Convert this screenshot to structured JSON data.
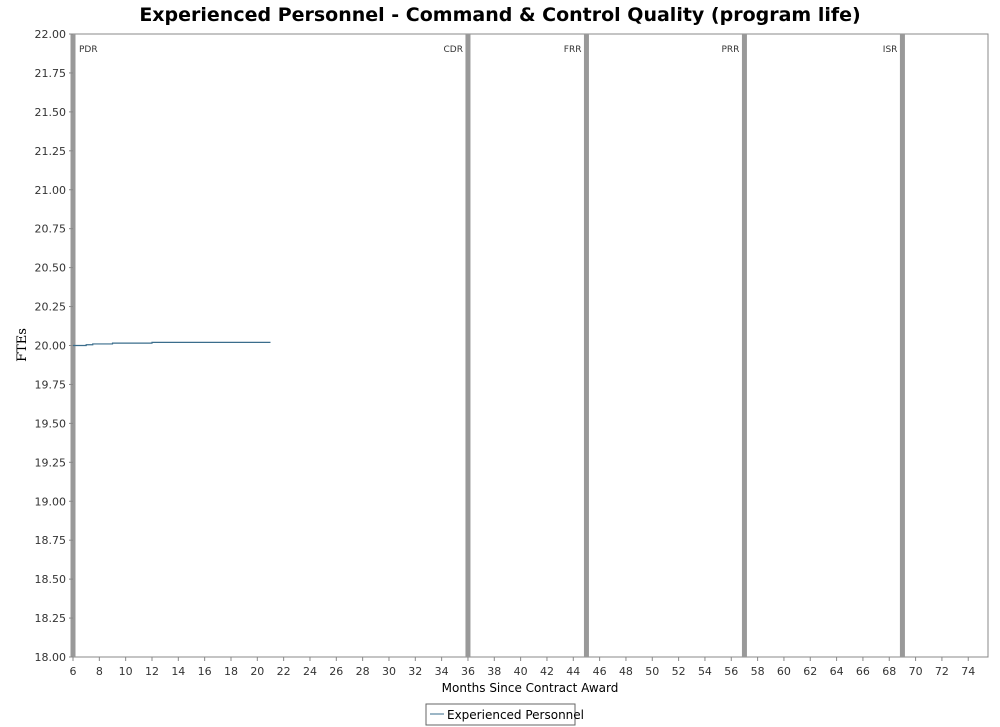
{
  "chart_data": {
    "type": "line",
    "title": "Experienced Personnel - Command & Control Quality (program life)",
    "xlabel": "Months Since Contract Award",
    "ylabel": "FTEs",
    "xlim": [
      6,
      75.5
    ],
    "ylim": [
      18.0,
      22.0
    ],
    "x_ticks": [
      6,
      8,
      10,
      12,
      14,
      16,
      18,
      20,
      22,
      24,
      26,
      28,
      30,
      32,
      34,
      36,
      38,
      40,
      42,
      44,
      46,
      48,
      50,
      52,
      54,
      56,
      58,
      60,
      62,
      64,
      66,
      68,
      70,
      72,
      74
    ],
    "y_ticks": [
      "18.00",
      "18.25",
      "18.50",
      "18.75",
      "19.00",
      "19.25",
      "19.50",
      "19.75",
      "20.00",
      "20.25",
      "20.50",
      "20.75",
      "21.00",
      "21.25",
      "21.50",
      "21.75",
      "22.00"
    ],
    "grid": false,
    "legend_placement": "bottom-center",
    "milestones": [
      {
        "label": "PDR",
        "x": 6
      },
      {
        "label": "CDR",
        "x": 36
      },
      {
        "label": "FRR",
        "x": 45
      },
      {
        "label": "PRR",
        "x": 57
      },
      {
        "label": "ISR",
        "x": 69
      }
    ],
    "series": [
      {
        "name": "Experienced Personnel",
        "color": "#3a6d8c",
        "step": true,
        "points": [
          [
            6,
            20.0
          ],
          [
            7.0,
            20.005
          ],
          [
            7.5,
            20.01
          ],
          [
            9.0,
            20.015
          ],
          [
            12.0,
            20.02
          ],
          [
            21.0,
            20.02
          ]
        ]
      }
    ]
  }
}
